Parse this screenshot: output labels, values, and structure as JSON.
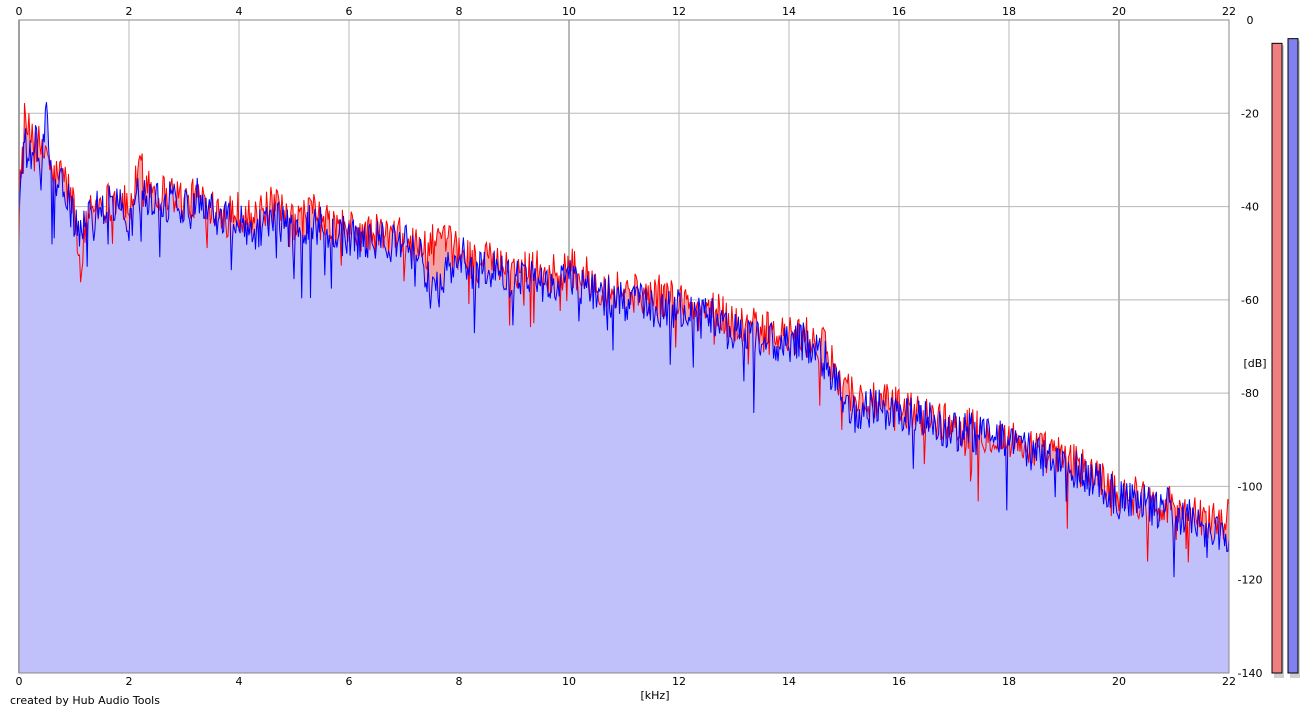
{
  "credit": "created by Hub Audio Tools",
  "chart_data": {
    "type": "area",
    "xlabel": "[kHz]",
    "ylabel": "[dB]",
    "xlim": [
      0,
      22
    ],
    "ylim": [
      -140,
      0
    ],
    "x_ticks": [
      0,
      2,
      4,
      6,
      8,
      10,
      12,
      14,
      16,
      18,
      20,
      22
    ],
    "y_ticks": [
      0,
      -20,
      -40,
      -60,
      -80,
      -100,
      -120,
      -140
    ],
    "grid": true,
    "x_unit": "kHz",
    "y_unit": "dB",
    "series": [
      {
        "color": "#ff0000",
        "fill": "#f4a3a3",
        "points": [
          [
            0.0,
            -36
          ],
          [
            0.1,
            -22
          ],
          [
            0.2,
            -25
          ],
          [
            0.3,
            -22
          ],
          [
            0.4,
            -30
          ],
          [
            0.5,
            -27
          ],
          [
            0.6,
            -34
          ],
          [
            0.8,
            -33
          ],
          [
            1.0,
            -40
          ],
          [
            1.1,
            -52
          ],
          [
            1.3,
            -40
          ],
          [
            1.6,
            -39
          ],
          [
            1.8,
            -38
          ],
          [
            2.0,
            -41
          ],
          [
            2.2,
            -32
          ],
          [
            2.5,
            -37
          ],
          [
            2.8,
            -37
          ],
          [
            3.0,
            -39
          ],
          [
            3.3,
            -38
          ],
          [
            3.6,
            -40
          ],
          [
            4.0,
            -41
          ],
          [
            4.3,
            -43
          ],
          [
            4.6,
            -40
          ],
          [
            5.0,
            -44
          ],
          [
            5.3,
            -41
          ],
          [
            5.6,
            -44
          ],
          [
            6.0,
            -45
          ],
          [
            6.3,
            -46
          ],
          [
            6.6,
            -46
          ],
          [
            7.0,
            -47
          ],
          [
            7.3,
            -49
          ],
          [
            7.6,
            -48
          ],
          [
            8.0,
            -49
          ],
          [
            8.3,
            -52
          ],
          [
            8.6,
            -52
          ],
          [
            9.0,
            -54
          ],
          [
            9.3,
            -52
          ],
          [
            9.6,
            -55
          ],
          [
            10.0,
            -53
          ],
          [
            10.3,
            -55
          ],
          [
            10.6,
            -57
          ],
          [
            11.0,
            -58
          ],
          [
            11.3,
            -59
          ],
          [
            11.6,
            -59
          ],
          [
            12.0,
            -60
          ],
          [
            12.3,
            -62
          ],
          [
            12.6,
            -62
          ],
          [
            13.0,
            -65
          ],
          [
            13.3,
            -66
          ],
          [
            13.6,
            -67
          ],
          [
            14.0,
            -68
          ],
          [
            14.3,
            -68
          ],
          [
            14.6,
            -70
          ],
          [
            14.9,
            -76
          ],
          [
            15.2,
            -81
          ],
          [
            15.5,
            -82
          ],
          [
            16.0,
            -83
          ],
          [
            16.5,
            -85
          ],
          [
            17.0,
            -87
          ],
          [
            17.5,
            -88
          ],
          [
            18.0,
            -90
          ],
          [
            18.5,
            -92
          ],
          [
            19.0,
            -94
          ],
          [
            19.5,
            -97
          ],
          [
            20.0,
            -101
          ],
          [
            20.5,
            -103
          ],
          [
            21.0,
            -104
          ],
          [
            21.5,
            -107
          ],
          [
            22.0,
            -107
          ]
        ]
      },
      {
        "color": "#0000ff",
        "fill": "#c0c0fa",
        "points": [
          [
            0.0,
            -40
          ],
          [
            0.1,
            -27
          ],
          [
            0.2,
            -30
          ],
          [
            0.3,
            -26
          ],
          [
            0.4,
            -33
          ],
          [
            0.5,
            -20
          ],
          [
            0.6,
            -37
          ],
          [
            0.8,
            -36
          ],
          [
            1.0,
            -42
          ],
          [
            1.1,
            -48
          ],
          [
            1.3,
            -41
          ],
          [
            1.6,
            -40
          ],
          [
            1.8,
            -39
          ],
          [
            2.0,
            -45
          ],
          [
            2.2,
            -36
          ],
          [
            2.5,
            -39
          ],
          [
            2.8,
            -39
          ],
          [
            3.0,
            -40
          ],
          [
            3.3,
            -37
          ],
          [
            3.6,
            -42
          ],
          [
            4.0,
            -43
          ],
          [
            4.3,
            -45
          ],
          [
            4.6,
            -42
          ],
          [
            5.0,
            -46
          ],
          [
            5.3,
            -43
          ],
          [
            5.6,
            -45
          ],
          [
            6.0,
            -47
          ],
          [
            6.3,
            -48
          ],
          [
            6.6,
            -47
          ],
          [
            7.0,
            -48
          ],
          [
            7.3,
            -51
          ],
          [
            7.6,
            -58
          ],
          [
            8.0,
            -50
          ],
          [
            8.3,
            -54
          ],
          [
            8.6,
            -53
          ],
          [
            9.0,
            -56
          ],
          [
            9.3,
            -54
          ],
          [
            9.6,
            -57
          ],
          [
            10.0,
            -55
          ],
          [
            10.3,
            -57
          ],
          [
            10.6,
            -59
          ],
          [
            11.0,
            -60
          ],
          [
            11.3,
            -61
          ],
          [
            11.6,
            -63
          ],
          [
            12.0,
            -62
          ],
          [
            12.3,
            -64
          ],
          [
            12.6,
            -64
          ],
          [
            13.0,
            -67
          ],
          [
            13.3,
            -67
          ],
          [
            13.6,
            -69
          ],
          [
            14.0,
            -70
          ],
          [
            14.3,
            -69
          ],
          [
            14.6,
            -72
          ],
          [
            14.9,
            -78
          ],
          [
            15.2,
            -85
          ],
          [
            15.5,
            -83
          ],
          [
            16.0,
            -85
          ],
          [
            16.5,
            -86
          ],
          [
            17.0,
            -88
          ],
          [
            17.5,
            -89
          ],
          [
            18.0,
            -91
          ],
          [
            18.5,
            -93
          ],
          [
            19.0,
            -95
          ],
          [
            19.5,
            -98
          ],
          [
            20.0,
            -103
          ],
          [
            20.5,
            -104
          ],
          [
            21.0,
            -105
          ],
          [
            21.5,
            -109
          ],
          [
            22.0,
            -111
          ]
        ]
      }
    ],
    "level_meters": [
      {
        "channel": "left",
        "color": "#f08080",
        "value_db": -5
      },
      {
        "channel": "right",
        "color": "#8080f0",
        "value_db": -4
      }
    ]
  }
}
